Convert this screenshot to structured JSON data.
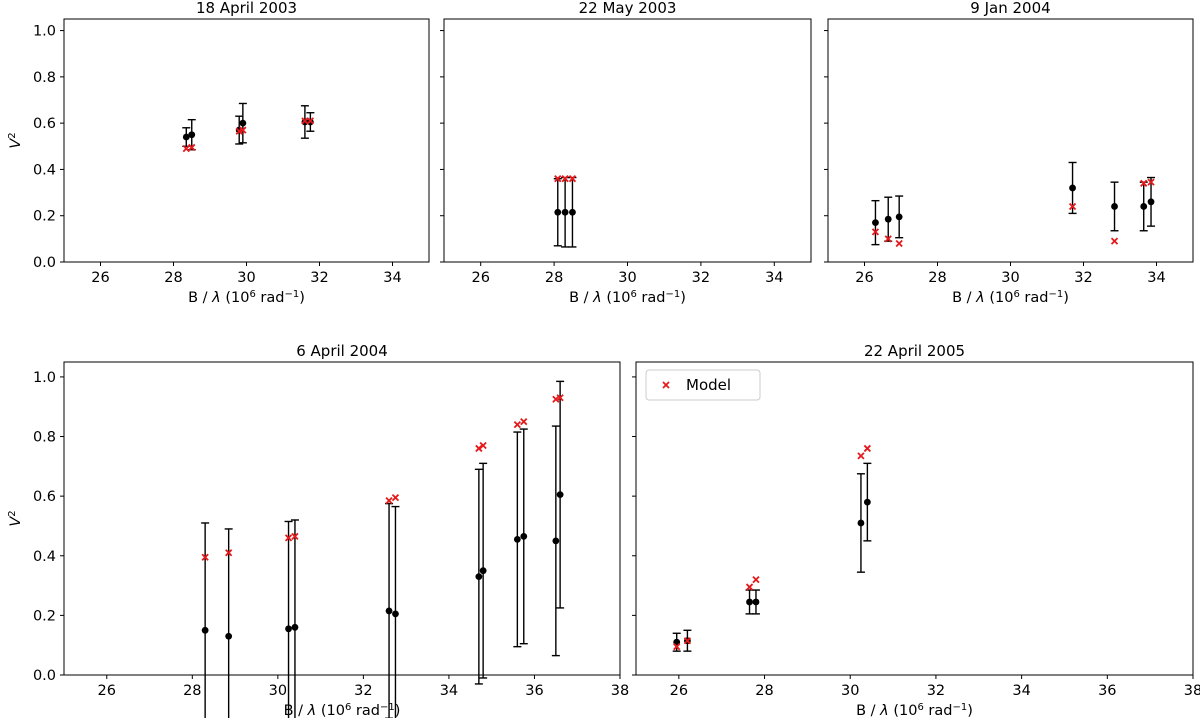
{
  "figure": {
    "x_label_main": "B / ",
    "x_label_lambda": "λ",
    "x_label_paren": " (10",
    "x_label_exp": "6",
    "x_label_unit": " rad",
    "x_label_unit_exp": "−1",
    "x_label_close": ")",
    "y_label_main": "V",
    "y_label_exp": "2",
    "legend_label": "Model",
    "data_color": "#000000",
    "model_color": "#e41a1c"
  },
  "chart_data": [
    {
      "type": "scatter",
      "title": "18 April 2003",
      "xlim": [
        25,
        35
      ],
      "ylim": [
        0,
        1.05
      ],
      "xticks": [
        26,
        28,
        30,
        32,
        34
      ],
      "yticks": [
        0.0,
        0.2,
        0.4,
        0.6,
        0.8,
        1.0
      ],
      "show_ylabel": true,
      "show_yticklabels": true,
      "legend": false,
      "series": [
        {
          "name": "",
          "kind": "data",
          "points": [
            {
              "x": 28.35,
              "y": 0.54,
              "err": 0.04
            },
            {
              "x": 28.5,
              "y": 0.55,
              "err": 0.065
            },
            {
              "x": 29.8,
              "y": 0.57,
              "err": 0.06
            },
            {
              "x": 29.9,
              "y": 0.6,
              "err": 0.085
            },
            {
              "x": 31.6,
              "y": 0.605,
              "err": 0.07
            },
            {
              "x": 31.75,
              "y": 0.605,
              "err": 0.04
            }
          ]
        },
        {
          "name": "Model",
          "kind": "model",
          "points": [
            {
              "x": 28.35,
              "y": 0.49
            },
            {
              "x": 28.5,
              "y": 0.495
            },
            {
              "x": 29.8,
              "y": 0.565
            },
            {
              "x": 29.9,
              "y": 0.57
            },
            {
              "x": 31.6,
              "y": 0.61
            },
            {
              "x": 31.75,
              "y": 0.61
            }
          ]
        }
      ]
    },
    {
      "type": "scatter",
      "title": "22 May 2003",
      "xlim": [
        25,
        35
      ],
      "ylim": [
        0,
        1.05
      ],
      "xticks": [
        26,
        28,
        30,
        32,
        34
      ],
      "yticks": [
        0.0,
        0.2,
        0.4,
        0.6,
        0.8,
        1.0
      ],
      "show_ylabel": false,
      "show_yticklabels": false,
      "legend": false,
      "series": [
        {
          "name": "",
          "kind": "data",
          "points": [
            {
              "x": 28.1,
              "y": 0.215,
              "err": 0.145
            },
            {
              "x": 28.3,
              "y": 0.215,
              "err": 0.15
            },
            {
              "x": 28.5,
              "y": 0.215,
              "err": 0.15
            }
          ]
        },
        {
          "name": "Model",
          "kind": "model",
          "points": [
            {
              "x": 28.1,
              "y": 0.36
            },
            {
              "x": 28.3,
              "y": 0.36
            },
            {
              "x": 28.5,
              "y": 0.36
            }
          ]
        }
      ]
    },
    {
      "type": "scatter",
      "title": "9 Jan 2004",
      "xlim": [
        25,
        35
      ],
      "ylim": [
        0,
        1.05
      ],
      "xticks": [
        26,
        28,
        30,
        32,
        34
      ],
      "yticks": [
        0.0,
        0.2,
        0.4,
        0.6,
        0.8,
        1.0
      ],
      "show_ylabel": false,
      "show_yticklabels": false,
      "legend": false,
      "series": [
        {
          "name": "",
          "kind": "data",
          "points": [
            {
              "x": 26.3,
              "y": 0.17,
              "err": 0.095
            },
            {
              "x": 26.65,
              "y": 0.185,
              "err": 0.095
            },
            {
              "x": 26.95,
              "y": 0.195,
              "err": 0.09
            },
            {
              "x": 31.7,
              "y": 0.32,
              "err": 0.11
            },
            {
              "x": 32.85,
              "y": 0.24,
              "err": 0.105
            },
            {
              "x": 33.65,
              "y": 0.24,
              "err": 0.105
            },
            {
              "x": 33.85,
              "y": 0.26,
              "err": 0.105
            }
          ]
        },
        {
          "name": "Model",
          "kind": "model",
          "points": [
            {
              "x": 26.3,
              "y": 0.13
            },
            {
              "x": 26.65,
              "y": 0.1
            },
            {
              "x": 26.95,
              "y": 0.08
            },
            {
              "x": 31.7,
              "y": 0.24
            },
            {
              "x": 32.85,
              "y": 0.09
            },
            {
              "x": 33.65,
              "y": 0.34
            },
            {
              "x": 33.85,
              "y": 0.345
            }
          ]
        }
      ]
    },
    {
      "type": "scatter",
      "title": "6 April 2004",
      "xlim": [
        25,
        38
      ],
      "ylim": [
        0,
        1.05
      ],
      "xticks": [
        26,
        28,
        30,
        32,
        34,
        36,
        38
      ],
      "yticks": [
        0.0,
        0.2,
        0.4,
        0.6,
        0.8,
        1.0
      ],
      "show_ylabel": true,
      "show_yticklabels": true,
      "legend": false,
      "series": [
        {
          "name": "",
          "kind": "data",
          "points": [
            {
              "x": 28.3,
              "y": 0.15,
              "err": 0.36
            },
            {
              "x": 28.85,
              "y": 0.13,
              "err": 0.36
            },
            {
              "x": 30.25,
              "y": 0.155,
              "err": 0.36
            },
            {
              "x": 30.4,
              "y": 0.16,
              "err": 0.36
            },
            {
              "x": 32.6,
              "y": 0.215,
              "err": 0.36
            },
            {
              "x": 32.75,
              "y": 0.205,
              "err": 0.36
            },
            {
              "x": 34.7,
              "y": 0.33,
              "err": 0.36
            },
            {
              "x": 34.8,
              "y": 0.35,
              "err": 0.36
            },
            {
              "x": 35.6,
              "y": 0.455,
              "err": 0.36
            },
            {
              "x": 35.75,
              "y": 0.465,
              "err": 0.36
            },
            {
              "x": 36.5,
              "y": 0.45,
              "err": 0.385
            },
            {
              "x": 36.6,
              "y": 0.605,
              "err": 0.38
            }
          ]
        },
        {
          "name": "Model",
          "kind": "model",
          "points": [
            {
              "x": 28.3,
              "y": 0.395
            },
            {
              "x": 28.85,
              "y": 0.41
            },
            {
              "x": 30.25,
              "y": 0.46
            },
            {
              "x": 30.4,
              "y": 0.465
            },
            {
              "x": 32.6,
              "y": 0.585
            },
            {
              "x": 32.75,
              "y": 0.595
            },
            {
              "x": 34.7,
              "y": 0.76
            },
            {
              "x": 34.8,
              "y": 0.77
            },
            {
              "x": 35.6,
              "y": 0.84
            },
            {
              "x": 35.75,
              "y": 0.85
            },
            {
              "x": 36.5,
              "y": 0.925
            },
            {
              "x": 36.6,
              "y": 0.93
            }
          ]
        }
      ]
    },
    {
      "type": "scatter",
      "title": "22 April 2005",
      "xlim": [
        25,
        38
      ],
      "ylim": [
        0,
        1.05
      ],
      "xticks": [
        26,
        28,
        30,
        32,
        34,
        36,
        38
      ],
      "yticks": [
        0.0,
        0.2,
        0.4,
        0.6,
        0.8,
        1.0
      ],
      "show_ylabel": false,
      "show_yticklabels": false,
      "legend": true,
      "legend_position": "upper-left",
      "series": [
        {
          "name": "",
          "kind": "data",
          "points": [
            {
              "x": 25.95,
              "y": 0.11,
              "err": 0.03
            },
            {
              "x": 26.2,
              "y": 0.115,
              "err": 0.035
            },
            {
              "x": 27.65,
              "y": 0.245,
              "err": 0.04
            },
            {
              "x": 27.8,
              "y": 0.245,
              "err": 0.04
            },
            {
              "x": 30.25,
              "y": 0.51,
              "err": 0.165
            },
            {
              "x": 30.4,
              "y": 0.58,
              "err": 0.13
            }
          ]
        },
        {
          "name": "Model",
          "kind": "model",
          "points": [
            {
              "x": 25.95,
              "y": 0.095
            },
            {
              "x": 26.2,
              "y": 0.115
            },
            {
              "x": 27.65,
              "y": 0.295
            },
            {
              "x": 27.8,
              "y": 0.32
            },
            {
              "x": 30.25,
              "y": 0.735
            },
            {
              "x": 30.4,
              "y": 0.76
            }
          ]
        }
      ]
    }
  ]
}
